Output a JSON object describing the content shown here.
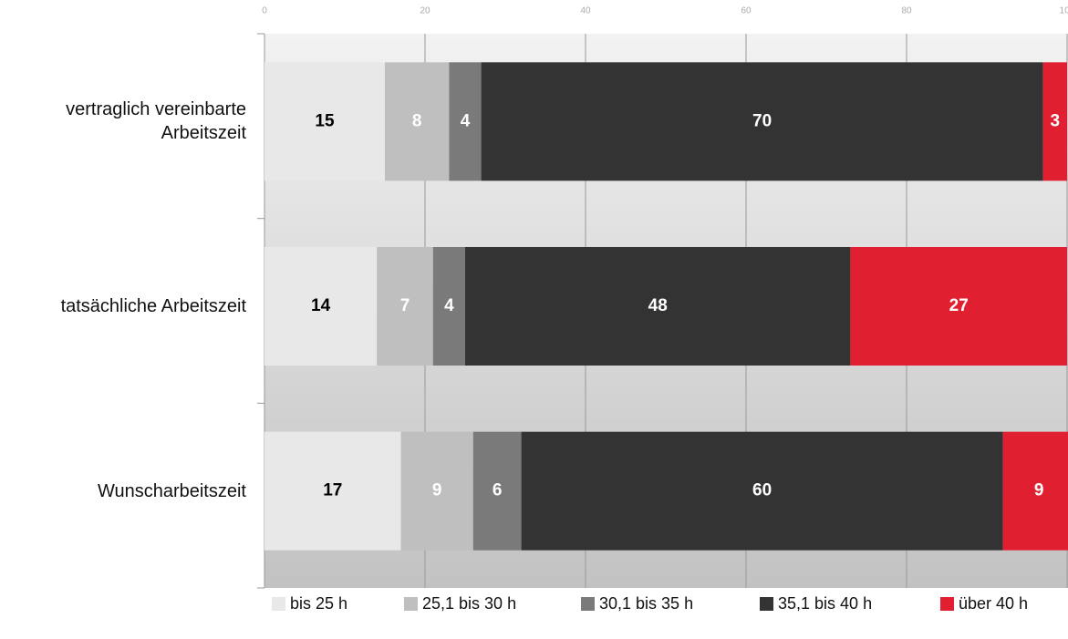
{
  "chart_data": {
    "type": "stacked-bar-horizontal",
    "categories": [
      "vertraglich vereinbarte\nArbeitszeit",
      "tatsächliche Arbeitszeit",
      "Wunscharbeitszeit"
    ],
    "series": [
      {
        "name": "bis 25 h",
        "color": "#e8e8e8",
        "values": [
          15,
          14,
          17
        ]
      },
      {
        "name": "25,1 bis 30 h",
        "color": "#bfbfbf",
        "values": [
          8,
          7,
          9
        ]
      },
      {
        "name": "30,1 bis 35 h",
        "color": "#7a7a7a",
        "values": [
          4,
          4,
          6
        ]
      },
      {
        "name": "35,1 bis 40 h",
        "color": "#333333",
        "values": [
          70,
          48,
          60
        ]
      },
      {
        "name": "über 40 h",
        "color": "#e02030",
        "values": [
          3,
          27,
          9
        ]
      }
    ],
    "xlim": [
      0,
      100
    ],
    "xticks": [
      0,
      20,
      40,
      60,
      80,
      100
    ],
    "grid": true,
    "legend": "bottom"
  }
}
